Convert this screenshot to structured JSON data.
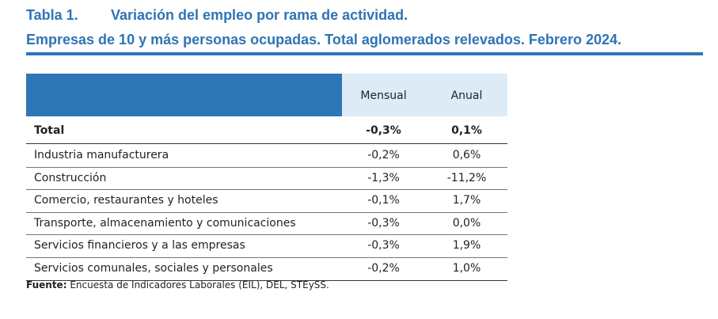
{
  "header": {
    "label": "Tabla 1.",
    "title": "Variación del empleo por rama de actividad.",
    "subtitle": "Empresas de 10 y más personas ocupadas. Total aglomerados relevados. Febrero 2024."
  },
  "table": {
    "columns": [
      "Mensual",
      "Anual"
    ],
    "total": [
      "Total",
      "-0,3%",
      "0,1%"
    ],
    "rows": [
      [
        "Industria manufacturera",
        "-0,2%",
        "0,6%"
      ],
      [
        "Construcción",
        "-1,3%",
        "-11,2%"
      ],
      [
        "Comercio, restaurantes y hoteles",
        "-0,1%",
        "1,7%"
      ],
      [
        "Transporte, almacenamiento y comunicaciones",
        "-0,3%",
        "0,0%"
      ],
      [
        "Servicios financieros y a las empresas",
        "-0,3%",
        "1,9%"
      ],
      [
        "Servicios comunales, sociales y personales",
        "-0,2%",
        "1,0%"
      ]
    ]
  },
  "footer": {
    "label": "Fuente:",
    "text": "Encuesta de Indicadores Laborales (EIL), DEL, STEySS."
  }
}
